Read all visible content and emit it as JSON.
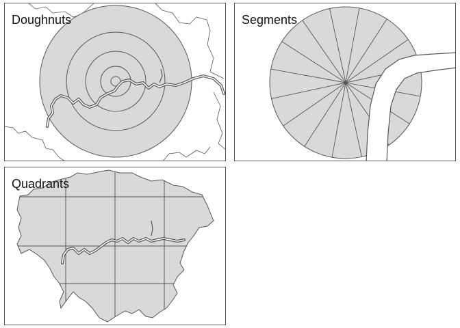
{
  "panels": [
    {
      "id": "doughnuts",
      "title": "Doughnuts"
    },
    {
      "id": "segments",
      "title": "Segments"
    },
    {
      "id": "quadrants",
      "title": "Quadrants"
    }
  ],
  "colors": {
    "fill": "#d9d9d9",
    "stroke": "#555555",
    "river": "#555555",
    "border": "#555555",
    "background": "#ffffff"
  }
}
